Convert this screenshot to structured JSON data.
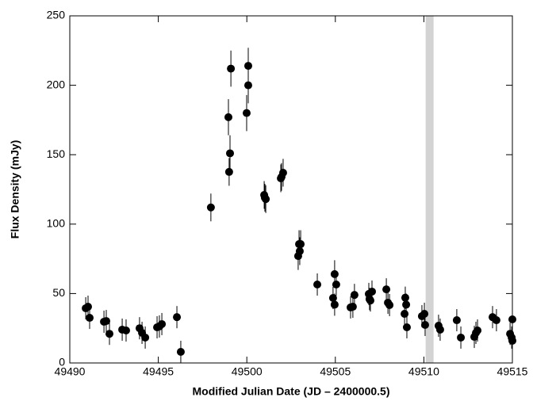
{
  "chart_data": {
    "type": "scatter",
    "xlabel": "Modified Julian Date (JD – 2400000.5)",
    "ylabel": "Flux Density (mJy)",
    "xlim": [
      49490,
      49515
    ],
    "ylim": [
      0,
      250
    ],
    "xticks": [
      49490,
      49495,
      49500,
      49505,
      49510,
      49515
    ],
    "yticks": [
      0,
      50,
      100,
      150,
      200,
      250
    ],
    "shade": [
      49510.1,
      49510.55
    ],
    "shade_color": "#d3d3d3",
    "color": "#000000",
    "x": [
      49490.9,
      49491.03,
      49491.12,
      49491.93,
      49492.06,
      49492.24,
      49492.96,
      49493.18,
      49493.94,
      49494.08,
      49494.26,
      49494.93,
      49495.06,
      49495.2,
      49496.05,
      49496.27,
      49497.97,
      49498.96,
      49499.0,
      49499.05,
      49499.1,
      49499.99,
      49500.08,
      49500.08,
      49500.98,
      49501.02,
      49501.07,
      49501.92,
      49501.96,
      49502.05,
      49502.9,
      49502.95,
      49502.99,
      49503.04,
      49503.98,
      49504.87,
      49504.96,
      49504.96,
      49505.05,
      49505.86,
      49505.99,
      49506.08,
      49506.89,
      49506.93,
      49506.98,
      49507.07,
      49507.88,
      49507.97,
      49508.06,
      49508.91,
      49508.95,
      49509.0,
      49509.04,
      49509.89,
      49510.03,
      49510.07,
      49510.83,
      49510.92,
      49511.86,
      49512.09,
      49512.85,
      49512.94,
      49513.03,
      49513.88,
      49514.1,
      49514.87,
      49514.96,
      49515.0,
      49515.0
    ],
    "values": [
      39.4,
      40.5,
      32.5,
      29.7,
      30.2,
      21,
      24,
      23.4,
      25,
      21.7,
      18.3,
      25.7,
      26.3,
      28,
      33,
      8,
      112,
      177,
      137.6,
      151,
      212,
      180,
      200,
      214,
      121,
      119,
      118,
      133,
      134,
      137,
      77,
      85.6,
      80.5,
      85.6,
      56.5,
      46.8,
      64,
      42,
      56.5,
      40,
      40.5,
      49,
      49.7,
      46,
      45,
      51.4,
      53,
      43.4,
      41.7,
      35.4,
      47,
      42,
      25.7,
      33.7,
      35.4,
      27.4,
      26.8,
      24,
      30.8,
      18.3,
      18.8,
      21.7,
      23.4,
      33,
      30.8,
      21,
      18.3,
      16,
      31.4
    ],
    "errors": [
      8,
      8,
      8,
      8,
      8,
      8,
      8,
      8,
      8,
      8,
      8,
      8,
      8,
      8,
      8,
      8,
      10,
      13,
      10,
      13,
      13,
      13,
      13,
      13,
      10,
      10,
      10,
      10,
      10,
      10,
      10,
      10,
      10,
      10,
      8,
      8,
      10,
      8,
      8,
      8,
      8,
      8,
      8,
      8,
      8,
      8,
      8,
      8,
      8,
      8,
      8,
      8,
      8,
      8,
      8,
      8,
      8,
      8,
      8,
      8,
      8,
      8,
      8,
      8,
      8,
      8,
      8,
      8,
      8
    ]
  }
}
